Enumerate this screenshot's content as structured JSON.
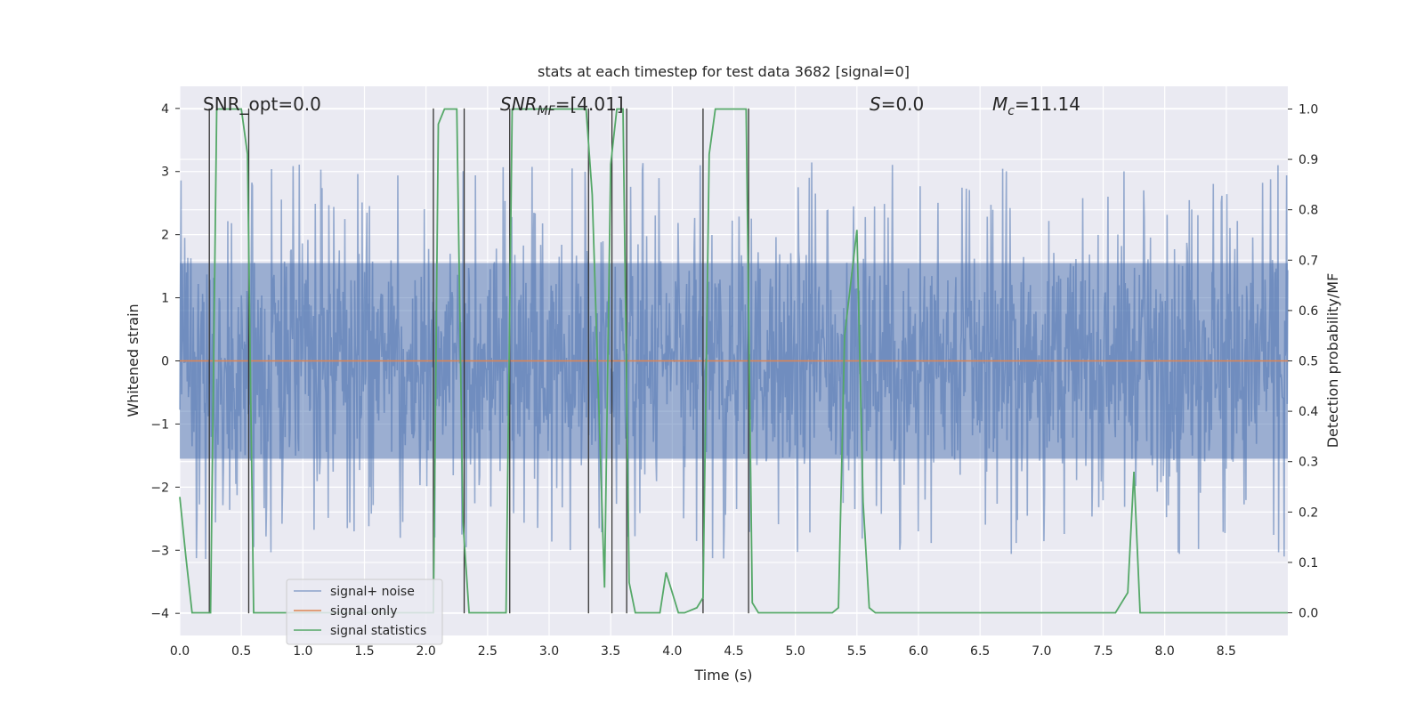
{
  "chart_data": {
    "type": "line",
    "title": "stats at each timestep for test data 3682 [signal=0]",
    "xlabel": "Time (s)",
    "ylabel_left": "Whitened strain",
    "ylabel_right": "Detection probability/MF",
    "xlim": [
      0,
      9.0
    ],
    "ylim_left": [
      -4.35,
      4.35
    ],
    "ylim_right": [
      -0.045,
      1.045
    ],
    "xticks": [
      "0.0",
      "0.5",
      "1.0",
      "1.5",
      "2.0",
      "2.5",
      "3.0",
      "3.5",
      "4.0",
      "4.5",
      "5.0",
      "5.5",
      "6.0",
      "6.5",
      "7.0",
      "7.5",
      "8.0",
      "8.5"
    ],
    "xtick_values": [
      0,
      0.5,
      1,
      1.5,
      2,
      2.5,
      3,
      3.5,
      4,
      4.5,
      5,
      5.5,
      6,
      6.5,
      7,
      7.5,
      8,
      8.5
    ],
    "yticks_left": [
      "4",
      "3",
      "2",
      "1",
      "0",
      "−1",
      "−2",
      "−3",
      "−4"
    ],
    "ytick_left_values": [
      4,
      3,
      2,
      1,
      0,
      -1,
      -2,
      -3,
      -4
    ],
    "yticks_right": [
      "1.0",
      "0.9",
      "0.8",
      "0.7",
      "0.6",
      "0.5",
      "0.4",
      "0.3",
      "0.2",
      "0.1",
      "0.0"
    ],
    "ytick_right_values": [
      1.0,
      0.9,
      0.8,
      0.7,
      0.6,
      0.5,
      0.4,
      0.3,
      0.2,
      0.1,
      0.0
    ],
    "grid": true,
    "annotations": {
      "snr_opt": "SNR_opt=0.0",
      "snr_mf_sym": "SNR",
      "snr_mf_sub": "MF",
      "snr_mf_val": "=[4.01]",
      "s_sym": "S",
      "s_val": "=0.0",
      "mc_sym": "M",
      "mc_sub": "c",
      "mc_val": "=11.14"
    },
    "legend": {
      "position": "lower-left",
      "entries": [
        "signal+ noise",
        "signal only",
        "signal statistics"
      ]
    },
    "series": [
      {
        "name": "signal+ noise",
        "color": "#4c72b0",
        "description": "whitened noise, amplitude approx ±1.6 with peaks to ±3.1"
      },
      {
        "name": "signal only",
        "color": "#dd8452",
        "y_constant": 0
      },
      {
        "name": "signal statistics",
        "color": "#55a868",
        "x": [
          0.0,
          0.05,
          0.1,
          0.25,
          0.3,
          0.4,
          0.5,
          0.55,
          0.6,
          0.8,
          1.0,
          1.5,
          2.0,
          2.06,
          2.1,
          2.15,
          2.25,
          2.3,
          2.35,
          2.45,
          2.65,
          2.7,
          2.75,
          3.0,
          3.3,
          3.35,
          3.45,
          3.5,
          3.55,
          3.6,
          3.65,
          3.7,
          3.8,
          3.9,
          3.95,
          4.05,
          4.1,
          4.2,
          4.25,
          4.3,
          4.35,
          4.4,
          4.5,
          4.55,
          4.6,
          4.65,
          4.7,
          4.75,
          5.0,
          5.3,
          5.35,
          5.4,
          5.5,
          5.55,
          5.6,
          5.65,
          6.0,
          7.0,
          7.5,
          7.6,
          7.7,
          7.75,
          7.8,
          7.9,
          8.5,
          9.0
        ],
        "y": [
          0.23,
          0.11,
          0.0,
          0.0,
          1.0,
          1.0,
          1.0,
          0.91,
          0.0,
          0.0,
          0.0,
          0.0,
          0.0,
          0.0,
          0.97,
          1.0,
          1.0,
          0.18,
          0.0,
          0.0,
          0.0,
          1.0,
          1.0,
          1.0,
          1.0,
          0.83,
          0.05,
          0.89,
          1.0,
          1.0,
          0.06,
          0.0,
          0.0,
          0.0,
          0.08,
          0.0,
          0.0,
          0.01,
          0.03,
          0.91,
          1.0,
          1.0,
          1.0,
          1.0,
          1.0,
          0.02,
          0.0,
          0.0,
          0.0,
          0.0,
          0.01,
          0.55,
          0.76,
          0.22,
          0.01,
          0.0,
          0.0,
          0.0,
          0.0,
          0.0,
          0.04,
          0.28,
          0.0,
          0.0,
          0.0,
          0.0
        ]
      },
      {
        "name": "detection markers",
        "color": "#333333",
        "x": [
          0.24,
          0.56,
          2.06,
          2.31,
          2.68,
          3.32,
          3.51,
          3.63,
          4.25,
          4.62
        ]
      }
    ]
  }
}
